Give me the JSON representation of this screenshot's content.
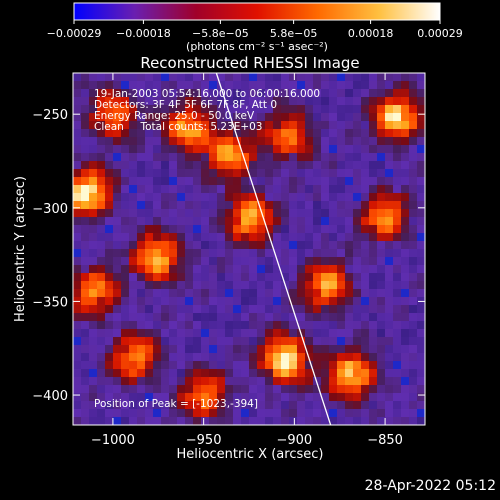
{
  "chart_data": {
    "type": "heatmap",
    "title": "Reconstructed RHESSI Image",
    "xlabel": "Heliocentric X (arcsec)",
    "ylabel": "Heliocentric Y (arcsec)",
    "xlim": [
      -1022,
      -828
    ],
    "ylim": [
      -416,
      -228
    ],
    "x_ticks": [
      -1000,
      -950,
      -900,
      -850
    ],
    "x_tick_labels": [
      "−1000",
      "−950",
      "−900",
      "−850"
    ],
    "y_ticks": [
      -250,
      -300,
      -350,
      -400
    ],
    "y_tick_labels": [
      "−250",
      "−300",
      "−350",
      "−400"
    ],
    "colorbar": {
      "range": [
        -0.00029,
        0.00029
      ],
      "tick_values": [
        -0.00029,
        -0.00018,
        -5.8e-05,
        5.8e-05,
        0.00018,
        0.00029
      ],
      "tick_labels": [
        "−0.00029",
        "−0.00018",
        "−5.8e−05",
        "5.8e−05",
        "0.00018",
        "0.00029"
      ],
      "units_label": "(photons cm⁻² s⁻¹ asec⁻²)",
      "colors": [
        "#0000ff",
        "#6a1fb0",
        "#a0002a",
        "#e01000",
        "#ff6a00",
        "#ffc040",
        "#ffffff"
      ]
    },
    "info_lines": [
      "19-Jan-2003 05:54:16.000 to 06:00:16.000",
      "Detectors: 3F 4F 5F 6F 7F 8F, Att 0",
      "Energy Range: 25.0 - 50.0 keV",
      "Clean     Total counts: 5.23E+03"
    ],
    "peak_label": "Position of Peak = [-1023,-394]",
    "limb_line": [
      [
        -943,
        -228
      ],
      [
        -880,
        -416
      ]
    ],
    "bright_regions": [
      {
        "x": -1014,
        "y": -292,
        "level": 0.95
      },
      {
        "x": -905,
        "y": -381,
        "level": 1.0
      },
      {
        "x": -843,
        "y": -252,
        "level": 0.9
      },
      {
        "x": -975,
        "y": -327,
        "level": 0.85
      },
      {
        "x": -925,
        "y": -305,
        "level": 0.8
      },
      {
        "x": -958,
        "y": -258,
        "level": 0.8
      },
      {
        "x": -868,
        "y": -390,
        "level": 0.85
      },
      {
        "x": -1000,
        "y": -250,
        "level": 0.7
      },
      {
        "x": -882,
        "y": -342,
        "level": 0.75
      },
      {
        "x": -988,
        "y": -380,
        "level": 0.7
      },
      {
        "x": -935,
        "y": -272,
        "level": 0.7
      },
      {
        "x": -850,
        "y": -305,
        "level": 0.7
      },
      {
        "x": -950,
        "y": -400,
        "level": 0.65
      },
      {
        "x": -1010,
        "y": -345,
        "level": 0.7
      },
      {
        "x": -903,
        "y": -262,
        "level": 0.7
      }
    ]
  },
  "footer": {
    "date": "28-Apr-2022 05:12"
  }
}
